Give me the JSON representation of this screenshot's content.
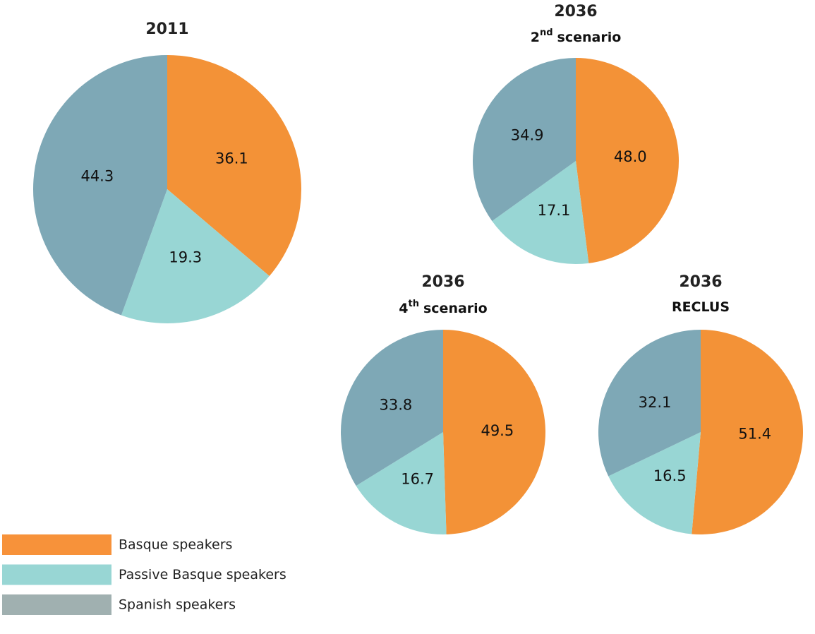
{
  "chart_data": [
    {
      "type": "pie",
      "title": "2011",
      "values": [
        36.1,
        19.3,
        44.3
      ],
      "colors": [
        "#f39237",
        "#98d6d4",
        "#7ea8b6"
      ]
    },
    {
      "type": "pie",
      "title": "2036",
      "subtitle": {
        "number": "2",
        "suffix": "nd",
        "text": "scenario"
      },
      "values": [
        48,
        17.1,
        34.9
      ],
      "value_labels": [
        "48.0",
        "17.1",
        "34.9"
      ],
      "colors": [
        "#f39237",
        "#98d6d4",
        "#7ea8b6"
      ]
    },
    {
      "type": "pie",
      "title": "2036",
      "subtitle": {
        "number": "4",
        "suffix": "th",
        "text": "scenario"
      },
      "values": [
        49.5,
        16.7,
        33.8
      ],
      "colors": [
        "#f39237",
        "#98d6d4",
        "#7ea8b6"
      ]
    },
    {
      "type": "pie",
      "title": "2036",
      "subtitle": {
        "text": "RECLUS"
      },
      "values": [
        51.4,
        16.5,
        32.1
      ],
      "colors": [
        "#f39237",
        "#98d6d4",
        "#7ea8b6"
      ]
    }
  ],
  "legend": {
    "labels": [
      "Basque speakers",
      "Passive Basque speakers",
      "Spanish speakers"
    ],
    "colors": [
      "#f7923a",
      "#98d6d4",
      "#a0b0b0"
    ]
  }
}
